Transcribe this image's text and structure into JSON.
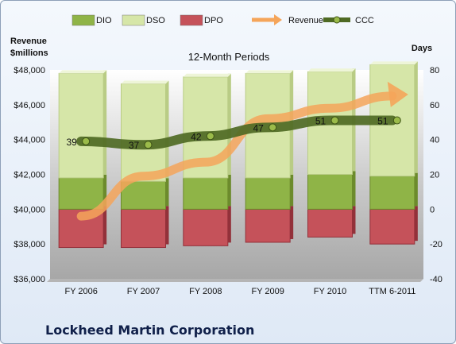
{
  "chart_data": {
    "type": "bar",
    "title": "12-Month Periods",
    "categories": [
      "FY 2006",
      "FY 2007",
      "FY 2008",
      "FY 2009",
      "FY 2010",
      "TTM 6-2011"
    ],
    "left_axis": {
      "label": "Revenue $millions",
      "ticks": [
        "$36,000",
        "$38,000",
        "$40,000",
        "$42,000",
        "$44,000",
        "$46,000",
        "$48,000"
      ],
      "ylim": [
        36000,
        48000
      ]
    },
    "right_axis": {
      "label": "Days",
      "ticks": [
        "-40",
        "-20",
        "0",
        "20",
        "40",
        "60",
        "80"
      ],
      "ylim": [
        -40,
        80
      ]
    },
    "series": [
      {
        "name": "DIO",
        "axis": "right",
        "values": [
          18,
          16,
          18,
          18,
          20,
          19
        ],
        "color": "#8fb447"
      },
      {
        "name": "DSO",
        "axis": "right",
        "values": [
          60,
          56,
          58,
          60,
          59,
          64
        ],
        "color": "#d6e6a8"
      },
      {
        "name": "DPO",
        "axis": "right",
        "values": [
          -22,
          -22,
          -21,
          -19,
          -16,
          -20
        ],
        "color": "#c5525a"
      },
      {
        "name": "Revenue",
        "axis": "left",
        "values": [
          39600,
          41900,
          42700,
          45200,
          45800,
          46500
        ],
        "color": "#f5a55a"
      },
      {
        "name": "CCC",
        "axis": "right",
        "values": [
          39,
          37,
          42,
          47,
          51,
          51
        ],
        "labels": [
          "39",
          "37",
          "42",
          "47",
          "51",
          "51"
        ],
        "color": "#4f6a24"
      }
    ],
    "legend": "top",
    "grid": false
  },
  "company_name": "Lockheed Martin Corporation"
}
